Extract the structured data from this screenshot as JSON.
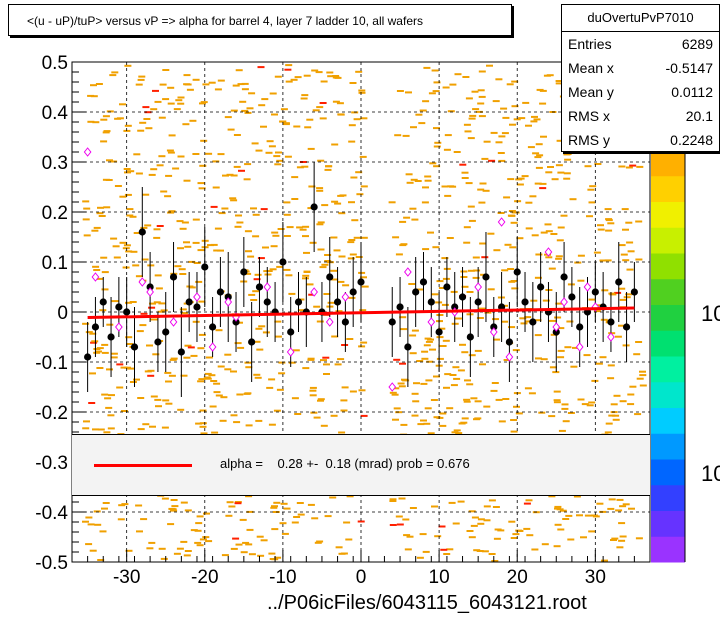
{
  "title": "<(u - uP)/tuP> versus   vP => alpha for barrel 4, layer 7 ladder 10, all wafers",
  "stats": {
    "name": "duOvertuPvP7010",
    "rows": [
      {
        "label": "Entries",
        "value": "6289"
      },
      {
        "label": "Mean x",
        "value": "-0.5147"
      },
      {
        "label": "Mean y",
        "value": "0.0112"
      },
      {
        "label": "RMS x",
        "value": "20.1"
      },
      {
        "label": "RMS y",
        "value": "0.2248"
      }
    ]
  },
  "fit": {
    "text": "alpha =    0.28 +-  0.18 (mrad) prob = 0.676",
    "color": "#ff0000"
  },
  "footer": "../P06icFiles/6043115_6043121.root",
  "colorbar": {
    "labels": [
      "10",
      "10"
    ],
    "colors": [
      "#9a33ff",
      "#6633ff",
      "#3340ff",
      "#0066ff",
      "#0099ff",
      "#00ccff",
      "#00e6cc",
      "#00f0a0",
      "#00e070",
      "#20d040",
      "#50d020",
      "#90e000",
      "#c8f000",
      "#f0f000",
      "#ffd000",
      "#ffb000"
    ]
  },
  "chart_data": {
    "type": "scatter",
    "title": "<(u - uP)/tuP> versus   vP => alpha for barrel 4, layer 7 ladder 10, all wafers",
    "xlabel": "",
    "ylabel": "",
    "xlim": [
      -37,
      37
    ],
    "ylim": [
      -0.5,
      0.5
    ],
    "x_ticks": [
      -30,
      -20,
      -10,
      0,
      10,
      20,
      30
    ],
    "y_ticks": [
      -0.5,
      -0.4,
      -0.3,
      -0.2,
      -0.1,
      0,
      0.1,
      0.2,
      0.3,
      0.4,
      0.5
    ],
    "x_tick_labels": [
      "-30",
      "-20",
      "-10",
      "0",
      "10",
      "20",
      "30"
    ],
    "y_tick_labels": [
      "-0.5",
      "-0.4",
      "-0.3",
      "-0.2",
      "-0.1",
      "0",
      "0.1",
      "0.2",
      "0.3",
      "0.4",
      "0.5"
    ],
    "grid": true,
    "fit_line": {
      "x": [
        -35,
        35
      ],
      "y": [
        -0.011,
        0.008
      ],
      "color": "#ff0000"
    },
    "series": [
      {
        "marker": "filled-circle",
        "color": "#000000",
        "x": [
          -35,
          -34,
          -33,
          -32,
          -31,
          -30,
          -29,
          -28,
          -27,
          -26,
          -25,
          -24,
          -23,
          -22,
          -21,
          -20,
          -19,
          -18,
          -17,
          -16,
          -15,
          -14,
          -13,
          -12,
          -11,
          -10,
          -9,
          -8,
          -7,
          -6,
          -5,
          -4,
          -3,
          -2,
          -1,
          0,
          4,
          5,
          6,
          7,
          8,
          9,
          10,
          11,
          12,
          13,
          14,
          15,
          16,
          17,
          18,
          19,
          20,
          21,
          22,
          23,
          24,
          25,
          26,
          27,
          28,
          29,
          30,
          31,
          32,
          33,
          34,
          35
        ],
        "y": [
          -0.09,
          -0.03,
          0.02,
          -0.05,
          0.01,
          0.0,
          -0.07,
          0.16,
          0.05,
          -0.06,
          -0.04,
          0.07,
          -0.08,
          0.02,
          0.01,
          0.09,
          -0.03,
          0.04,
          0.03,
          -0.02,
          0.08,
          -0.06,
          0.05,
          0.02,
          0.0,
          0.1,
          -0.04,
          0.02,
          0.0,
          0.21,
          0.0,
          0.07,
          0.02,
          -0.02,
          0.04,
          0.06,
          -0.02,
          0.01,
          -0.07,
          0.04,
          0.06,
          0.02,
          -0.04,
          0.05,
          0.01,
          0.03,
          -0.05,
          0.02,
          0.07,
          -0.03,
          0.01,
          -0.06,
          0.08,
          0.02,
          -0.02,
          0.05,
          0.0,
          -0.04,
          0.07,
          0.03,
          -0.03,
          0.0,
          0.04,
          0.01,
          -0.02,
          0.06,
          -0.03,
          0.04
        ],
        "err": [
          0.07,
          0.06,
          0.05,
          0.08,
          0.06,
          0.07,
          0.08,
          0.09,
          0.07,
          0.06,
          0.08,
          0.07,
          0.09,
          0.06,
          0.07,
          0.08,
          0.06,
          0.07,
          0.09,
          0.06,
          0.07,
          0.08,
          0.06,
          0.07,
          0.06,
          0.08,
          0.07,
          0.06,
          0.07,
          0.09,
          0.06,
          0.08,
          0.07,
          0.06,
          0.07,
          0.08,
          0.07,
          0.06,
          0.08,
          0.07,
          0.06,
          0.07,
          0.08,
          0.06,
          0.07,
          0.06,
          0.08,
          0.07,
          0.09,
          0.06,
          0.07,
          0.08,
          0.07,
          0.06,
          0.08,
          0.07,
          0.06,
          0.08,
          0.07,
          0.06,
          0.08,
          0.07,
          0.06,
          0.07,
          0.06,
          0.08,
          0.07,
          0.06
        ]
      },
      {
        "marker": "open-diamond",
        "color": "#ee00ee",
        "x": [
          -35,
          -34,
          -31,
          -28,
          -27,
          -24,
          -21,
          -19,
          -17,
          -16,
          -12,
          -9,
          -6,
          -4,
          -2,
          4,
          6,
          9,
          12,
          15,
          17,
          18,
          19,
          24,
          25,
          26,
          28,
          29,
          30,
          32
        ],
        "y": [
          0.32,
          0.07,
          -0.03,
          0.06,
          0.04,
          -0.02,
          0.03,
          -0.07,
          0.02,
          -0.01,
          0.05,
          -0.08,
          0.04,
          -0.02,
          0.03,
          -0.15,
          0.08,
          -0.02,
          0.0,
          0.05,
          -0.04,
          0.18,
          -0.09,
          0.12,
          -0.03,
          0.02,
          -0.07,
          0.05,
          0.01,
          -0.05
        ]
      }
    ]
  }
}
